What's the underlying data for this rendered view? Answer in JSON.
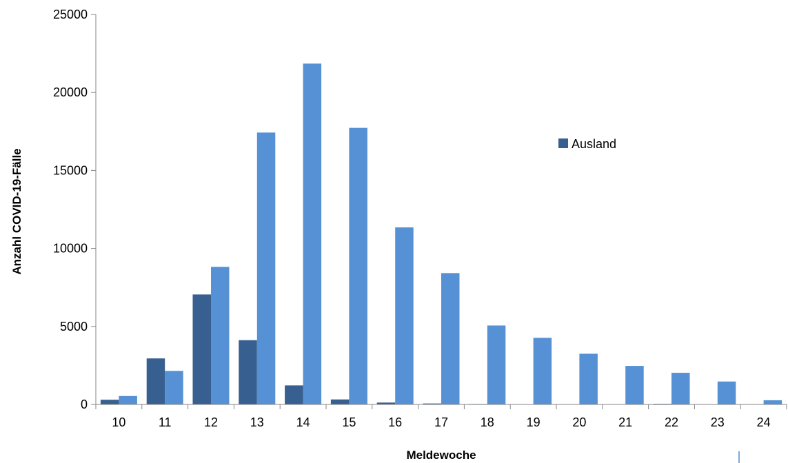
{
  "chart_data": {
    "type": "bar",
    "title": "",
    "xlabel": "Meldewoche",
    "ylabel": "Anzahl COVID-19-Fälle",
    "categories": [
      "10",
      "11",
      "12",
      "13",
      "14",
      "15",
      "16",
      "17",
      "18",
      "19",
      "20",
      "21",
      "22",
      "23",
      "24"
    ],
    "series": [
      {
        "name": "Ausland",
        "color": "#375f8f",
        "values": [
          300,
          2950,
          7050,
          4120,
          1220,
          320,
          120,
          60,
          30,
          20,
          20,
          20,
          40,
          10,
          10
        ]
      },
      {
        "name": "",
        "color": "#5591d4",
        "values": [
          540,
          2150,
          8820,
          17430,
          21850,
          17730,
          11350,
          8420,
          5060,
          4270,
          3250,
          2470,
          2030,
          1470,
          270
        ]
      }
    ],
    "ylim": [
      0,
      25000
    ],
    "yticks": [
      0,
      5000,
      10000,
      15000,
      20000,
      25000
    ],
    "legend": {
      "position": "right",
      "entries": [
        "Ausland"
      ]
    },
    "grid": false
  }
}
